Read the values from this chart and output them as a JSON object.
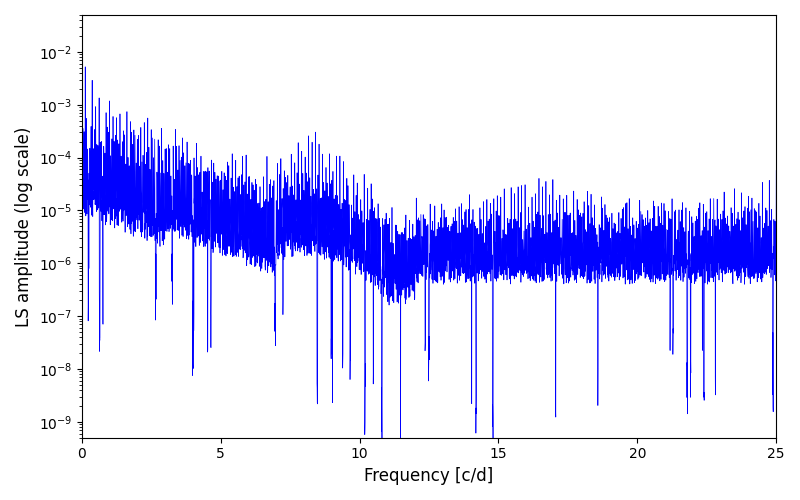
{
  "title": "",
  "xlabel": "Frequency [c/d]",
  "ylabel": "LS amplitude (log scale)",
  "xlim": [
    0,
    25
  ],
  "ylim": [
    5e-10,
    0.05
  ],
  "line_color": "#0000ff",
  "line_width": 0.5,
  "figsize": [
    8.0,
    5.0
  ],
  "dpi": 100,
  "seed": 42,
  "n_points": 5000,
  "background_color": "#ffffff"
}
